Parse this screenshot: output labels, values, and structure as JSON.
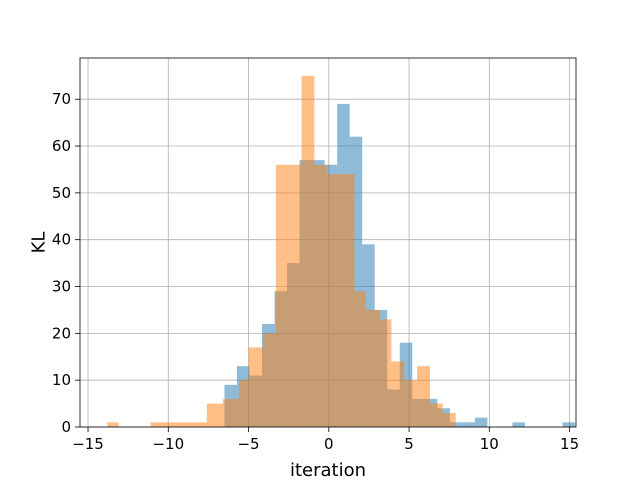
{
  "chart_data": {
    "type": "histogram",
    "title": "",
    "xlabel": "iteration",
    "ylabel": "KL",
    "xlim": [
      -15.5,
      15.4
    ],
    "ylim": [
      0,
      78.8
    ],
    "xticks": [
      -15,
      -10,
      -5,
      0,
      5,
      10,
      15
    ],
    "xtick_labels": [
      "−15",
      "−10",
      "−5",
      "0",
      "5",
      "10",
      "15"
    ],
    "yticks": [
      0,
      10,
      20,
      30,
      40,
      50,
      60,
      70
    ],
    "grid": true,
    "legend": false,
    "series": [
      {
        "color": "#1f77b4",
        "alpha": 0.5,
        "bin_start": -6.5,
        "bin_width": 0.78,
        "counts": [
          9,
          13,
          11,
          22,
          29,
          35,
          57,
          57,
          56,
          69,
          62,
          39,
          25,
          8,
          18,
          6,
          6,
          4,
          1,
          1,
          2,
          0,
          0,
          1,
          0,
          0,
          0,
          1
        ]
      },
      {
        "color": "#ff7f0e",
        "alpha": 0.5,
        "bins": [
          [
            -13.8,
            -13.1,
            1
          ],
          [
            -13.1,
            -11.1,
            0
          ],
          [
            -11.1,
            -7.6,
            1
          ],
          [
            -7.6,
            -6.6,
            5
          ],
          [
            -6.6,
            -5.6,
            6
          ],
          [
            -5.6,
            -5.0,
            10
          ],
          [
            -5.0,
            -4.1,
            17
          ],
          [
            -4.1,
            -3.3,
            20
          ],
          [
            -3.3,
            -2.5,
            56
          ],
          [
            -2.5,
            -1.7,
            56
          ],
          [
            -1.7,
            -0.9,
            75
          ],
          [
            -0.9,
            -0.1,
            56
          ],
          [
            -0.1,
            0.7,
            54
          ],
          [
            0.7,
            1.6,
            54
          ],
          [
            1.6,
            2.3,
            29
          ],
          [
            2.3,
            3.2,
            25
          ],
          [
            3.2,
            3.9,
            23
          ],
          [
            3.9,
            4.7,
            14
          ],
          [
            4.7,
            5.5,
            10
          ],
          [
            5.5,
            6.3,
            13
          ],
          [
            6.3,
            7.1,
            5
          ],
          [
            7.1,
            7.9,
            3
          ]
        ]
      }
    ]
  }
}
